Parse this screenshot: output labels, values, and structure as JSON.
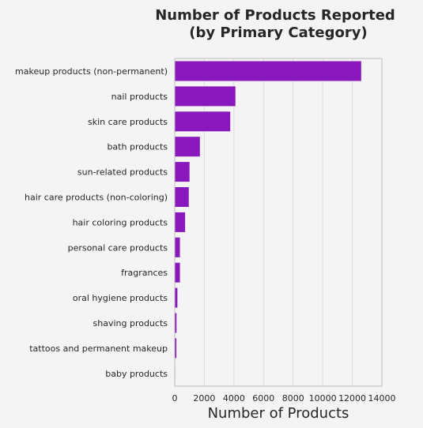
{
  "chart_data": {
    "type": "bar",
    "orientation": "horizontal",
    "title": [
      "Number of Products Reported",
      "(by Primary Category)"
    ],
    "xlabel": "Number of Products",
    "ylabel": "",
    "xlim": [
      0,
      14000
    ],
    "xticks": [
      0,
      2000,
      4000,
      6000,
      8000,
      10000,
      12000,
      14000
    ],
    "grid": true,
    "bar_color": "#8a19bd",
    "categories": [
      "makeup products (non-permanent)",
      "nail products",
      "skin care products",
      "bath products",
      "sun-related products",
      "hair care products (non-coloring)",
      "hair coloring products",
      "personal care products",
      "fragrances",
      "oral hygiene products",
      "shaving products",
      "tattoos and permanent makeup",
      "baby products"
    ],
    "values": [
      12600,
      4100,
      3750,
      1700,
      1000,
      950,
      700,
      350,
      350,
      180,
      120,
      110,
      30
    ]
  }
}
